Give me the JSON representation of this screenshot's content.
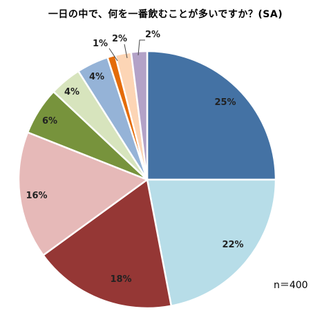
{
  "chart_data": {
    "type": "pie",
    "title": "一日の中で、何を一番飲むことが多いですか？(SA)",
    "note": "n＝400",
    "slices": [
      {
        "label": "25%",
        "value": 25,
        "color": "#4472a4"
      },
      {
        "label": "22%",
        "value": 22,
        "color": "#b7dde8"
      },
      {
        "label": "18%",
        "value": 18,
        "color": "#953735"
      },
      {
        "label": "16%",
        "value": 16,
        "color": "#e6b9b8"
      },
      {
        "label": "6%",
        "value": 6,
        "color": "#77933c"
      },
      {
        "label": "4%",
        "value": 4,
        "color": "#d7e4bd"
      },
      {
        "label": "4%",
        "value": 4,
        "color": "#95b3d7"
      },
      {
        "label": "1%",
        "value": 1,
        "color": "#e46c0a"
      },
      {
        "label": "2%",
        "value": 2,
        "color": "#fcd5b5"
      },
      {
        "label": "2%",
        "value": 2,
        "color": "#b3a2c7"
      }
    ]
  }
}
